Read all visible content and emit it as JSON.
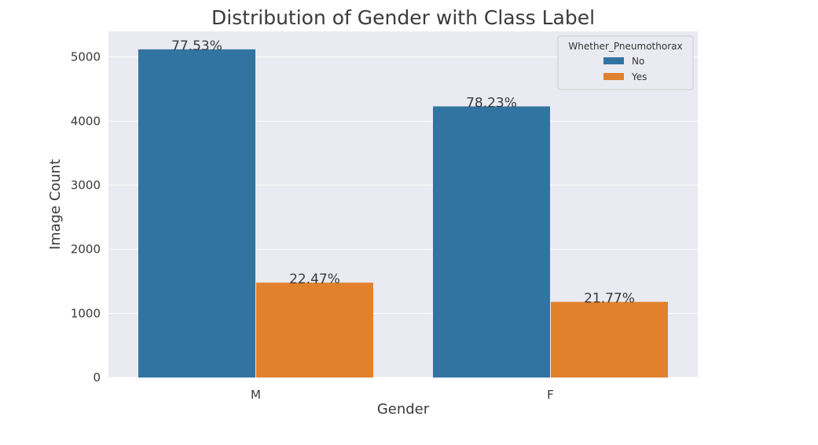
{
  "chart_data": {
    "type": "bar",
    "title": "Distribution of Gender with Class Label",
    "xlabel": "Gender",
    "ylabel": "Image Count",
    "categories": [
      "M",
      "F"
    ],
    "series": [
      {
        "name": "No",
        "values": [
          5120,
          4230
        ],
        "labels": [
          "77.53%",
          "78.23%"
        ]
      },
      {
        "name": "Yes",
        "values": [
          1480,
          1180
        ],
        "labels": [
          "22.47%",
          "21.77%"
        ]
      }
    ],
    "ylim": [
      0,
      5400
    ],
    "yticks": [
      0,
      1000,
      2000,
      3000,
      4000,
      5000
    ],
    "grid": true,
    "legend": {
      "title": "Whether_Pneumothorax",
      "position": "top-right"
    },
    "colors": {
      "No": "#3274a1",
      "Yes": "#e1812c",
      "background": "#eaeaf2",
      "grid": "#ffffff"
    }
  }
}
